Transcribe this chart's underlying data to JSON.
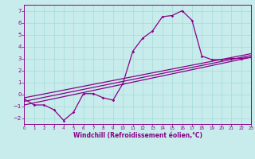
{
  "xlabel": "Windchill (Refroidissement éolien,°C)",
  "ylabel": "",
  "xlim": [
    0,
    23
  ],
  "ylim": [
    -2.5,
    7.5
  ],
  "xticks": [
    0,
    1,
    2,
    3,
    4,
    5,
    6,
    7,
    8,
    9,
    10,
    11,
    12,
    13,
    14,
    15,
    16,
    17,
    18,
    19,
    20,
    21,
    22,
    23
  ],
  "yticks": [
    -2,
    -1,
    0,
    1,
    2,
    3,
    4,
    5,
    6,
    7
  ],
  "bg_color": "#c8ecec",
  "line_color": "#880088",
  "grid_color": "#aadddd",
  "main_line_x": [
    0,
    1,
    2,
    3,
    4,
    5,
    6,
    7,
    8,
    9,
    10,
    11,
    12,
    13,
    14,
    15,
    16,
    17,
    18,
    19,
    20,
    21,
    22,
    23
  ],
  "main_line_y": [
    -0.4,
    -0.9,
    -0.9,
    -1.3,
    -2.2,
    -1.5,
    0.05,
    0.05,
    -0.3,
    -0.5,
    0.9,
    3.6,
    4.7,
    5.3,
    6.5,
    6.6,
    7.0,
    6.2,
    3.2,
    2.9,
    2.9,
    3.0,
    3.0,
    3.1
  ],
  "regression_line1_x": [
    0,
    23
  ],
  "regression_line1_y": [
    -0.9,
    3.1
  ],
  "regression_line2_x": [
    0,
    23
  ],
  "regression_line2_y": [
    -0.6,
    3.25
  ],
  "regression_line3_x": [
    0,
    23
  ],
  "regression_line3_y": [
    -0.3,
    3.4
  ]
}
